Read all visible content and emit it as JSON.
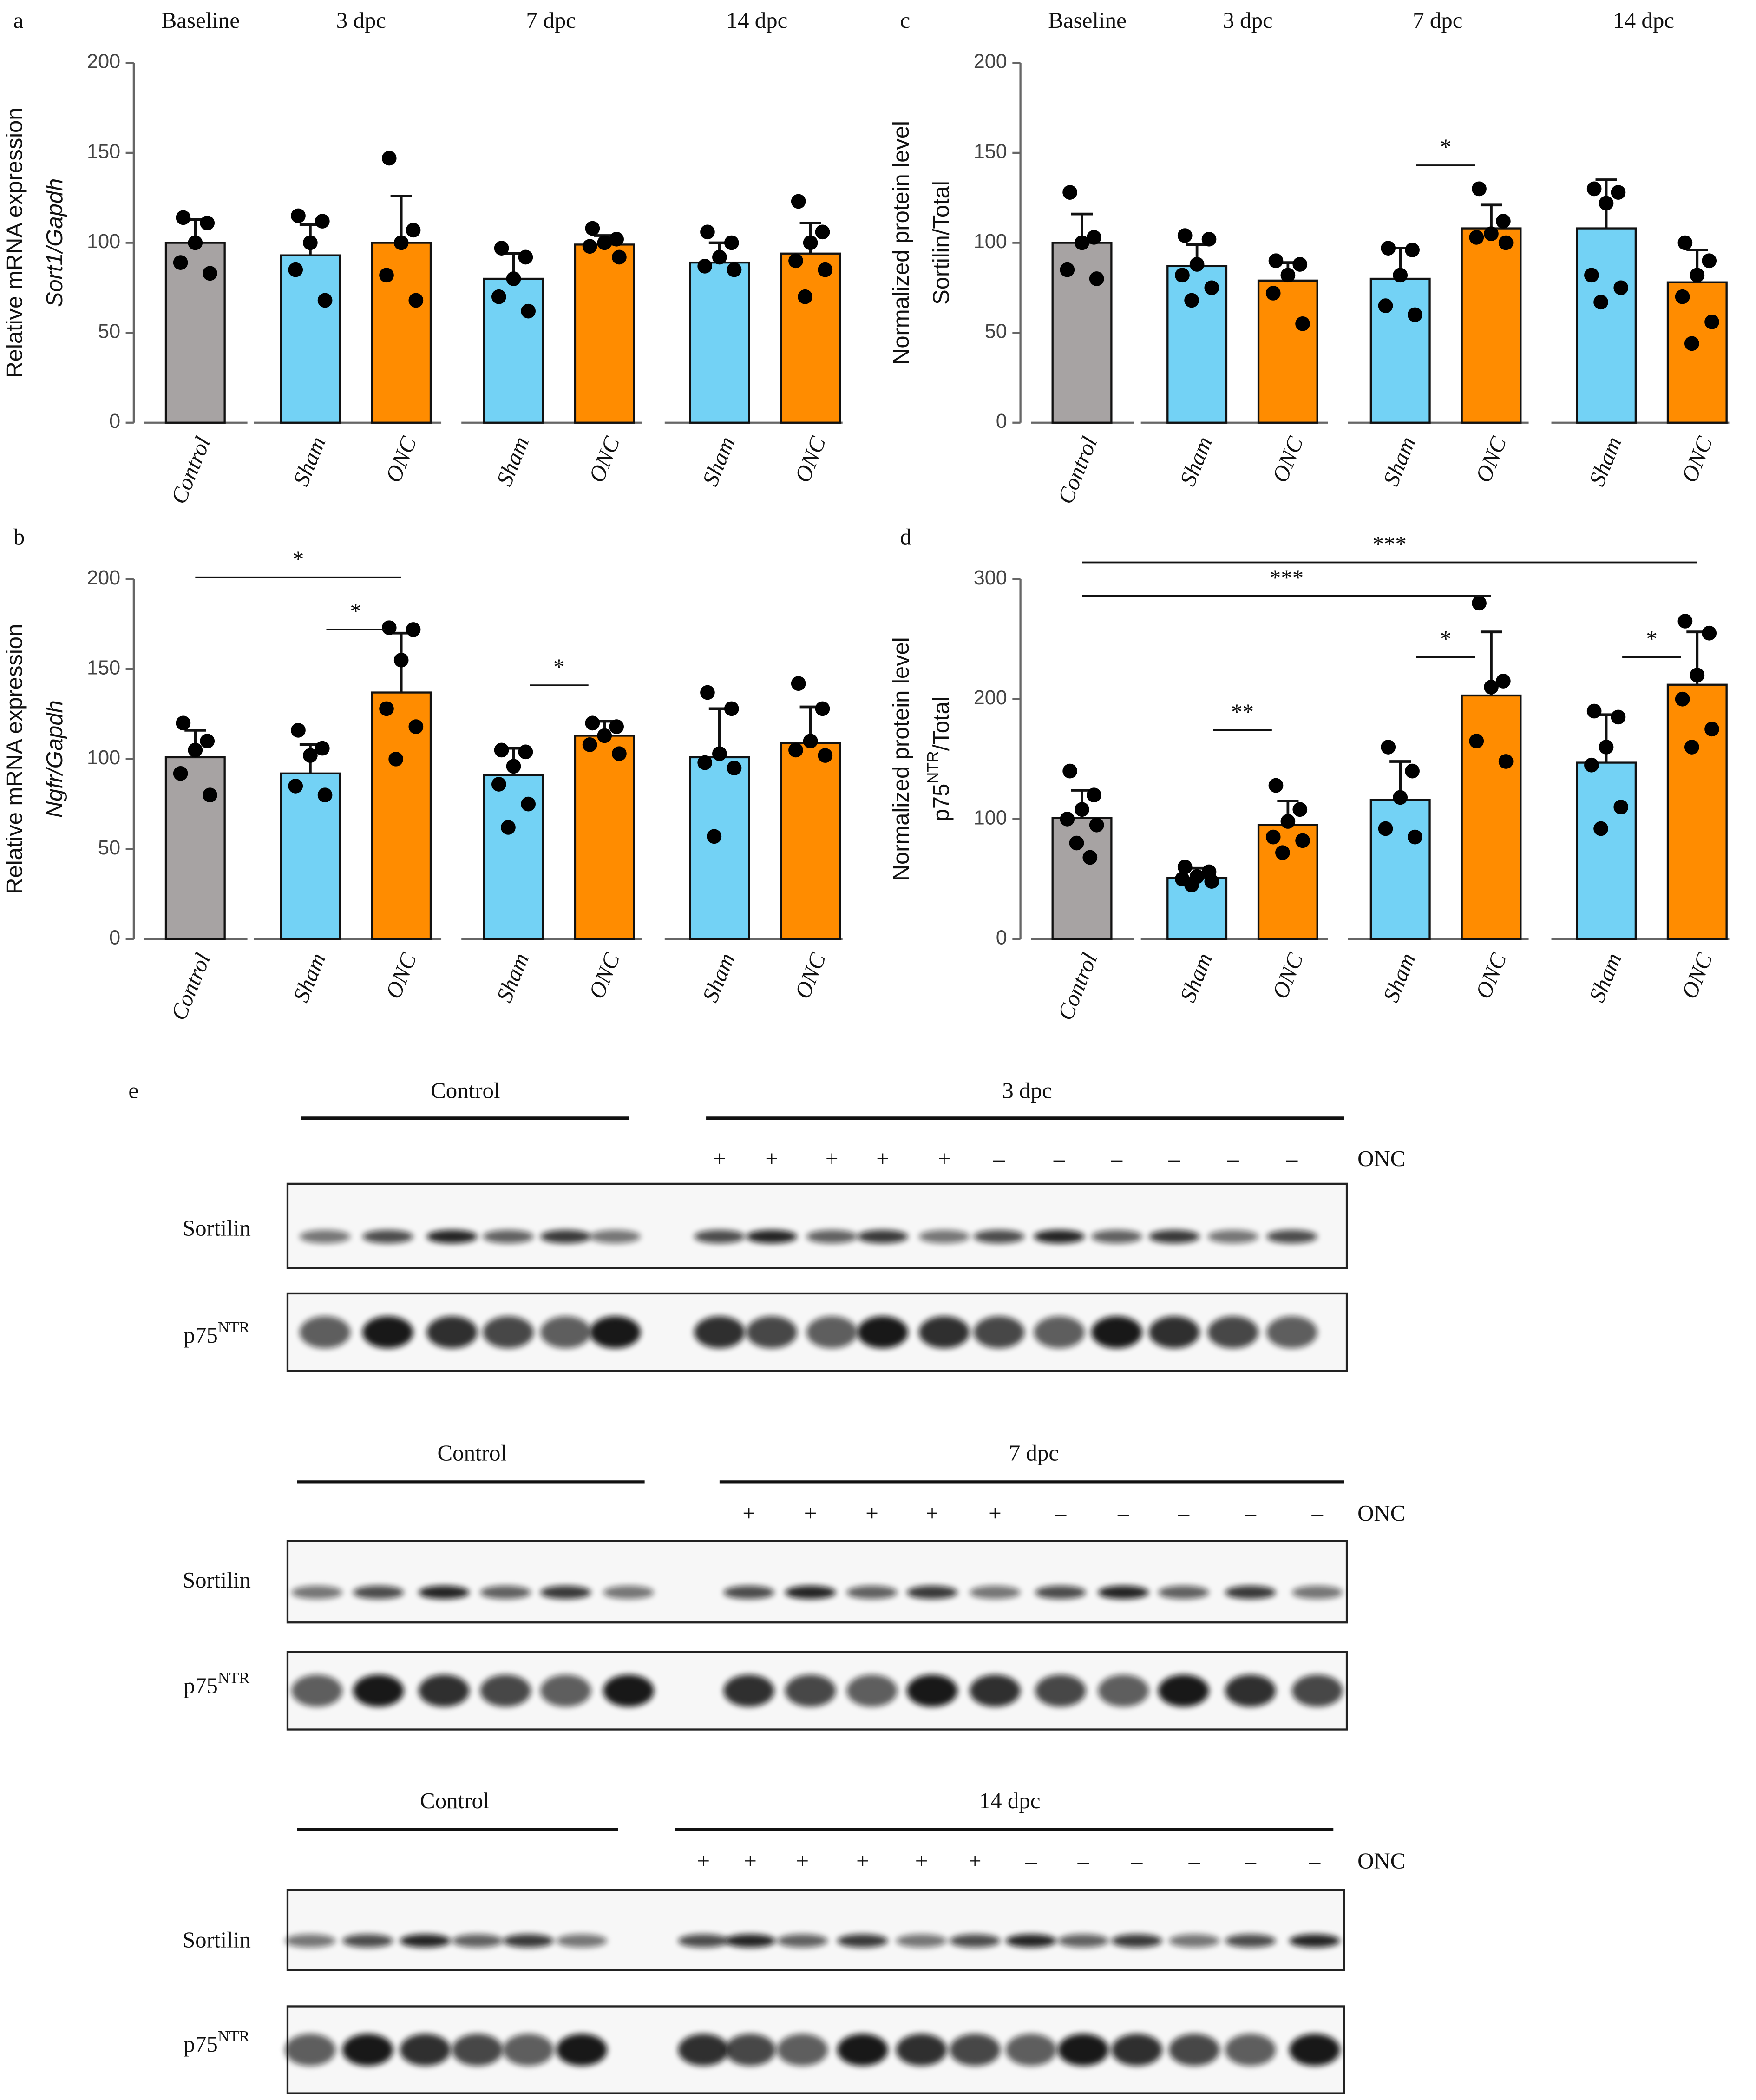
{
  "chart_data": [
    {
      "type": "bar",
      "panel": "a",
      "groups": [
        "Baseline",
        "3 dpc",
        "7 dpc",
        "14 dpc"
      ],
      "ylabel": "Relative mRNA expression",
      "ylabel2": [
        {
          "text": "Sort1/Gapdh",
          "italic": true
        }
      ],
      "categories": [
        "Control",
        "Sham",
        "ONC",
        "Sham",
        "ONC",
        "Sham",
        "ONC"
      ],
      "colors": [
        "#a7a3a3",
        "#73d2f5",
        "#ff8c00",
        "#73d2f5",
        "#ff8c00",
        "#73d2f5",
        "#ff8c00"
      ],
      "values": [
        100,
        93,
        100,
        80,
        99,
        89,
        94
      ],
      "errors": [
        13,
        17,
        26,
        14,
        5,
        11,
        17
      ],
      "points": [
        [
          114,
          111,
          100,
          89,
          83
        ],
        [
          115,
          112,
          100,
          85,
          68
        ],
        [
          147,
          107,
          100,
          82,
          68
        ],
        [
          97,
          92,
          80,
          70,
          62
        ],
        [
          108,
          102,
          100,
          98,
          92
        ],
        [
          106,
          100,
          92,
          87,
          85
        ],
        [
          123,
          106,
          100,
          90,
          85,
          70
        ]
      ],
      "ylim": [
        0,
        200
      ],
      "yticks": [
        0,
        50,
        100,
        150,
        200
      ]
    },
    {
      "type": "bar",
      "panel": "b",
      "ylabel": "Relative mRNA expression",
      "ylabel2": [
        {
          "text": "Ngfr/Gapdh",
          "italic": true
        }
      ],
      "categories": [
        "Control",
        "Sham",
        "ONC",
        "Sham",
        "ONC",
        "Sham",
        "ONC"
      ],
      "colors": [
        "#a7a3a3",
        "#73d2f5",
        "#ff8c00",
        "#73d2f5",
        "#ff8c00",
        "#73d2f5",
        "#ff8c00"
      ],
      "values": [
        101,
        92,
        137,
        91,
        113,
        101,
        109
      ],
      "errors": [
        15,
        16,
        33,
        15,
        8,
        27,
        20
      ],
      "points": [
        [
          120,
          110,
          105,
          92,
          80
        ],
        [
          116,
          106,
          102,
          85,
          80
        ],
        [
          173,
          172,
          155,
          128,
          118,
          100
        ],
        [
          105,
          104,
          96,
          86,
          75,
          62
        ],
        [
          120,
          118,
          113,
          108,
          103
        ],
        [
          137,
          128,
          103,
          98,
          95,
          57
        ],
        [
          142,
          128,
          110,
          105,
          102
        ]
      ],
      "ylim": [
        0,
        200
      ],
      "yticks": [
        0,
        50,
        100,
        150,
        200
      ],
      "annotations": [
        {
          "text": "*",
          "bars": [
            0,
            2
          ],
          "level": 201
        },
        {
          "text": "*",
          "bars": [
            1,
            2
          ],
          "level": 172
        },
        {
          "text": "*",
          "bars": [
            3,
            4
          ],
          "level": 141
        }
      ]
    },
    {
      "type": "bar",
      "panel": "c",
      "groups": [
        "Baseline",
        "3 dpc",
        "7 dpc",
        "14 dpc"
      ],
      "ylabel": "Normalized protein level",
      "ylabel2": [
        {
          "text": "Sortilin/Total"
        }
      ],
      "categories": [
        "Control",
        "Sham",
        "ONC",
        "Sham",
        "ONC",
        "Sham",
        "ONC"
      ],
      "colors": [
        "#a7a3a3",
        "#73d2f5",
        "#ff8c00",
        "#73d2f5",
        "#ff8c00",
        "#73d2f5",
        "#ff8c00"
      ],
      "values": [
        100,
        87,
        79,
        80,
        108,
        108,
        78
      ],
      "errors": [
        16,
        12,
        10,
        17,
        13,
        27,
        18
      ],
      "points": [
        [
          128,
          103,
          100,
          85,
          80
        ],
        [
          104,
          102,
          88,
          82,
          75,
          68
        ],
        [
          90,
          88,
          82,
          72,
          55
        ],
        [
          97,
          96,
          82,
          65,
          60
        ],
        [
          130,
          112,
          105,
          103,
          100
        ],
        [
          130,
          128,
          122,
          82,
          75,
          67
        ],
        [
          100,
          90,
          82,
          70,
          56,
          44
        ]
      ],
      "ylim": [
        0,
        200
      ],
      "yticks": [
        0,
        50,
        100,
        150,
        200
      ],
      "annotations": [
        {
          "text": "*",
          "bars": [
            3,
            4
          ],
          "level": 143
        }
      ]
    },
    {
      "type": "bar",
      "panel": "d",
      "ylabel": "Normalized protein level",
      "ylabel2": [
        {
          "text": "p75"
        },
        {
          "text": "NTR",
          "sup": true
        },
        {
          "text": "/Total"
        }
      ],
      "categories": [
        "Control",
        "Sham",
        "ONC",
        "Sham",
        "ONC",
        "Sham",
        "ONC"
      ],
      "colors": [
        "#a7a3a3",
        "#73d2f5",
        "#ff8c00",
        "#73d2f5",
        "#ff8c00",
        "#73d2f5",
        "#ff8c00"
      ],
      "values": [
        101,
        51,
        95,
        116,
        203,
        147,
        212
      ],
      "errors": [
        23,
        8,
        20,
        32,
        53,
        40,
        44
      ],
      "points": [
        [
          140,
          120,
          108,
          100,
          95,
          80,
          68
        ],
        [
          60,
          56,
          52,
          50,
          48,
          45
        ],
        [
          128,
          108,
          98,
          85,
          82,
          72
        ],
        [
          160,
          140,
          118,
          92,
          85
        ],
        [
          280,
          215,
          210,
          165,
          148
        ],
        [
          190,
          185,
          160,
          145,
          110,
          92
        ],
        [
          265,
          255,
          220,
          200,
          175,
          160
        ]
      ],
      "ylim": [
        0,
        300
      ],
      "yticks": [
        0,
        100,
        200,
        300
      ],
      "annotations": [
        {
          "text": "***",
          "bars": [
            0,
            6
          ],
          "level": 314
        },
        {
          "text": "***",
          "bars": [
            0,
            4
          ],
          "level": 286
        },
        {
          "text": "**",
          "bars": [
            1,
            2
          ],
          "level": 174
        },
        {
          "text": "*",
          "bars": [
            3,
            4
          ],
          "level": 235
        },
        {
          "text": "*",
          "bars": [
            5,
            6
          ],
          "level": 235
        }
      ]
    }
  ],
  "western_blot": {
    "panel": "e",
    "blocks": [
      {
        "groups": [
          "Control",
          "3 dpc"
        ],
        "onc_label": "ONC",
        "onc": [
          "+",
          "+",
          "+",
          "+",
          "+",
          "–",
          "–",
          "–",
          "–",
          "–",
          "–"
        ],
        "rows": [
          [
            {
              "text": "Sortilin"
            }
          ],
          [
            {
              "text": "p75"
            },
            {
              "text": "NTR",
              "sup": true
            }
          ]
        ]
      },
      {
        "groups": [
          "Control",
          "7 dpc"
        ],
        "onc_label": "ONC",
        "onc": [
          "+",
          "+",
          "+",
          "+",
          "+",
          "–",
          "–",
          "–",
          "–",
          "–"
        ],
        "rows": [
          [
            {
              "text": "Sortilin"
            }
          ],
          [
            {
              "text": "p75"
            },
            {
              "text": "NTR",
              "sup": true
            }
          ]
        ]
      },
      {
        "groups": [
          "Control",
          "14 dpc"
        ],
        "onc_label": "ONC",
        "onc": [
          "+",
          "+",
          "+",
          "+",
          "+",
          "+",
          "–",
          "–",
          "–",
          "–",
          "–",
          "–"
        ],
        "rows": [
          [
            {
              "text": "Sortilin"
            }
          ],
          [
            {
              "text": "p75"
            },
            {
              "text": "NTR",
              "sup": true
            }
          ]
        ]
      }
    ]
  }
}
